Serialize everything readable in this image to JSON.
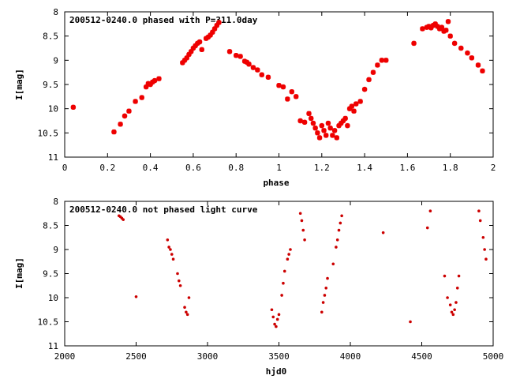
{
  "chart_data": [
    {
      "type": "scatter",
      "title": "200512-0240.0 phased with P=311.0day",
      "xlabel": "phase",
      "ylabel": "I[mag]",
      "xlim": [
        0,
        2
      ],
      "ylim": [
        8,
        11
      ],
      "y_inverted": true,
      "grid": false,
      "legend": "none",
      "color": "#ee0000",
      "marker": "star",
      "x_ticks": [
        "0",
        "0.2",
        "0.4",
        "0.6",
        "0.8",
        "1",
        "1.2",
        "1.4",
        "1.6",
        "1.8",
        "2"
      ],
      "y_ticks": [
        "8",
        "8.5",
        "9",
        "9.5",
        "10",
        "10.5",
        "11"
      ],
      "series": [
        {
          "x": [
            0.04,
            0.23,
            0.26,
            0.28,
            0.3,
            0.33,
            0.36,
            0.38,
            0.39,
            0.4,
            0.41,
            0.42,
            0.44,
            0.55,
            0.56,
            0.57,
            0.58,
            0.59,
            0.6,
            0.61,
            0.62,
            0.63,
            0.64,
            0.66,
            0.67,
            0.68,
            0.69,
            0.7,
            0.71,
            0.72,
            0.77,
            0.8,
            0.82,
            0.84,
            0.85,
            0.86,
            0.88,
            0.9,
            0.92,
            0.95,
            1.0,
            1.02,
            1.04,
            1.06,
            1.08,
            1.1,
            1.12,
            1.14,
            1.15,
            1.16,
            1.17,
            1.18,
            1.19,
            1.2,
            1.21,
            1.22,
            1.23,
            1.24,
            1.25,
            1.26,
            1.27,
            1.28,
            1.29,
            1.3,
            1.31,
            1.32,
            1.33,
            1.34,
            1.35,
            1.36,
            1.38,
            1.4,
            1.42,
            1.44,
            1.46,
            1.48,
            1.5,
            1.63,
            1.67,
            1.69,
            1.7,
            1.71,
            1.72,
            1.73,
            1.74,
            1.75,
            1.76,
            1.77,
            1.78,
            1.79,
            1.8,
            1.82,
            1.85,
            1.88,
            1.9,
            1.93,
            1.95
          ],
          "y": [
            9.97,
            10.48,
            10.32,
            10.15,
            10.05,
            9.85,
            9.77,
            9.55,
            9.48,
            9.5,
            9.45,
            9.42,
            9.38,
            9.05,
            9.0,
            8.95,
            8.88,
            8.82,
            8.75,
            8.7,
            8.65,
            8.62,
            8.78,
            8.55,
            8.52,
            8.48,
            8.42,
            8.35,
            8.28,
            8.22,
            8.82,
            8.9,
            8.92,
            9.02,
            9.04,
            9.08,
            9.15,
            9.2,
            9.3,
            9.35,
            9.52,
            9.55,
            9.8,
            9.65,
            9.75,
            10.25,
            10.28,
            10.1,
            10.2,
            10.3,
            10.4,
            10.5,
            10.6,
            10.35,
            10.45,
            10.55,
            10.3,
            10.4,
            10.55,
            10.45,
            10.6,
            10.35,
            10.3,
            10.25,
            10.2,
            10.35,
            10.0,
            9.95,
            10.05,
            9.9,
            9.85,
            9.6,
            9.4,
            9.25,
            9.1,
            9.0,
            9.0,
            8.65,
            8.35,
            8.32,
            8.3,
            8.33,
            8.28,
            8.25,
            8.3,
            8.35,
            8.32,
            8.4,
            8.38,
            8.2,
            8.5,
            8.65,
            8.75,
            8.85,
            8.95,
            9.1,
            9.22
          ]
        }
      ]
    },
    {
      "type": "scatter",
      "title": "200512-0240.0 not phased light curve",
      "xlabel": "hjd0",
      "ylabel": "I[mag]",
      "xlim": [
        2000,
        5000
      ],
      "ylim": [
        8,
        11
      ],
      "y_inverted": true,
      "grid": false,
      "legend": "none",
      "color": "#cc0000",
      "marker": "dot",
      "x_ticks": [
        "2000",
        "2500",
        "3000",
        "3500",
        "4000",
        "4500",
        "5000"
      ],
      "y_ticks": [
        "8",
        "8.5",
        "9",
        "9.5",
        "10",
        "10.5",
        "11"
      ],
      "series": [
        {
          "x": [
            2380,
            2390,
            2400,
            2410,
            2500,
            2720,
            2730,
            2740,
            2750,
            2760,
            2790,
            2800,
            2810,
            2840,
            2850,
            2860,
            2870,
            3450,
            3460,
            3470,
            3480,
            3490,
            3500,
            3520,
            3530,
            3540,
            3560,
            3570,
            3580,
            3650,
            3660,
            3670,
            3680,
            3800,
            3810,
            3820,
            3830,
            3840,
            3880,
            3900,
            3910,
            3920,
            3930,
            3940,
            4230,
            4420,
            4540,
            4560,
            4660,
            4680,
            4700,
            4710,
            4720,
            4730,
            4740,
            4750,
            4760,
            4900,
            4910,
            4930,
            4940,
            4950
          ],
          "y": [
            8.3,
            8.32,
            8.35,
            8.38,
            9.98,
            8.8,
            8.95,
            9.0,
            9.1,
            9.2,
            9.5,
            9.65,
            9.75,
            10.2,
            10.3,
            10.35,
            10.0,
            10.25,
            10.4,
            10.55,
            10.6,
            10.45,
            10.35,
            9.95,
            9.7,
            9.45,
            9.2,
            9.1,
            9.0,
            8.25,
            8.4,
            8.6,
            8.8,
            10.3,
            10.1,
            9.95,
            9.8,
            9.6,
            9.3,
            8.95,
            8.8,
            8.6,
            8.45,
            8.3,
            8.65,
            10.5,
            8.55,
            8.2,
            9.55,
            10.0,
            10.15,
            10.3,
            10.35,
            10.25,
            10.1,
            9.8,
            9.55,
            8.2,
            8.4,
            8.75,
            9.0,
            9.2
          ]
        }
      ]
    }
  ]
}
